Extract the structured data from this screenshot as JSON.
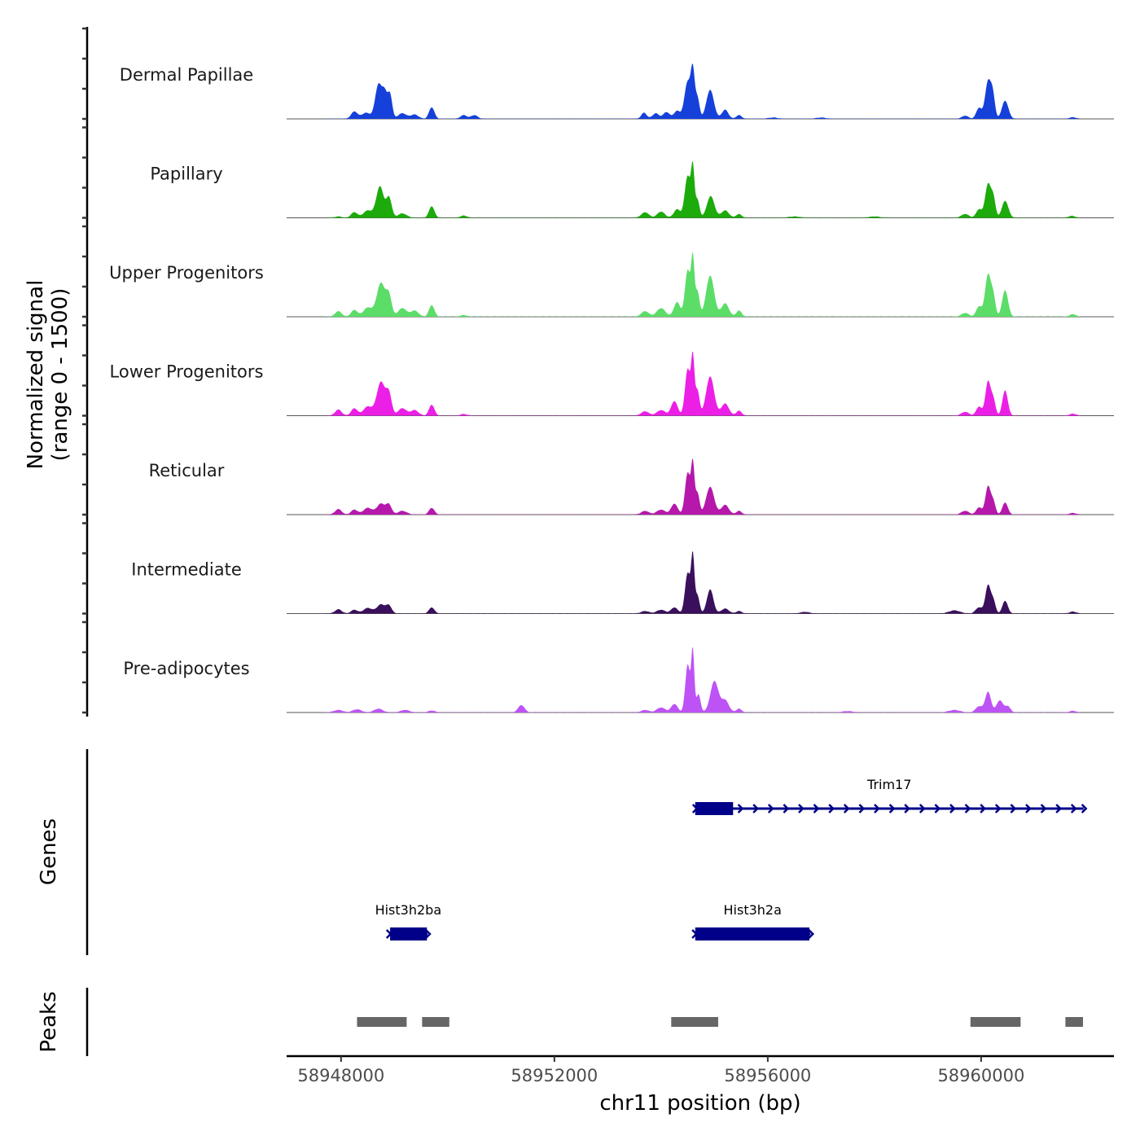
{
  "chart_data": {
    "type": "area",
    "title": "",
    "xlabel": "chr11 position (bp)",
    "ylabel": "Normalized signal\n(range 0 - 1500)",
    "ylabel_lines": [
      "Normalized signal",
      "(range 0 - 1500)"
    ],
    "xlim": [
      58946980,
      58962490
    ],
    "ylim": [
      0,
      1500
    ],
    "y_ticks": [
      0,
      500,
      1000,
      1500
    ],
    "x_ticks": [
      58948000,
      58952000,
      58956000,
      58960000
    ],
    "x_tick_labels": [
      "58948000",
      "58952000",
      "58956000",
      "58960000"
    ],
    "signal_range": [
      58947700,
      58961850
    ],
    "tracks": [
      {
        "name": "Dermal Papillae",
        "color": "#1540DA",
        "peaks": [
          [
            58948250,
            120,
            60
          ],
          [
            58948470,
            100,
            80
          ],
          [
            58948700,
            560,
            60
          ],
          [
            58948820,
            420,
            50
          ],
          [
            58948920,
            380,
            40
          ],
          [
            58949150,
            90,
            80
          ],
          [
            58949380,
            70,
            70
          ],
          [
            58949700,
            190,
            50
          ],
          [
            58950300,
            60,
            60
          ],
          [
            58950500,
            60,
            60
          ],
          [
            58953680,
            100,
            50
          ],
          [
            58953900,
            90,
            60
          ],
          [
            58954100,
            110,
            60
          ],
          [
            58954300,
            130,
            60
          ],
          [
            58954500,
            620,
            60
          ],
          [
            58954595,
            700,
            35
          ],
          [
            58954680,
            350,
            40
          ],
          [
            58954920,
            480,
            70
          ],
          [
            58955200,
            150,
            60
          ],
          [
            58955460,
            60,
            50
          ],
          [
            58956100,
            20,
            80
          ],
          [
            58957000,
            20,
            80
          ],
          [
            58959700,
            50,
            60
          ],
          [
            58959960,
            180,
            50
          ],
          [
            58960130,
            620,
            55
          ],
          [
            58960220,
            350,
            40
          ],
          [
            58960450,
            300,
            60
          ],
          [
            58961720,
            25,
            60
          ]
        ]
      },
      {
        "name": "Papillary",
        "color": "#1CAB0B",
        "peaks": [
          [
            58947950,
            20,
            60
          ],
          [
            58948250,
            90,
            60
          ],
          [
            58948500,
            120,
            80
          ],
          [
            58948730,
            520,
            70
          ],
          [
            58948900,
            330,
            50
          ],
          [
            58949150,
            70,
            80
          ],
          [
            58949700,
            190,
            50
          ],
          [
            58950300,
            35,
            60
          ],
          [
            58953700,
            90,
            70
          ],
          [
            58954000,
            100,
            70
          ],
          [
            58954300,
            140,
            60
          ],
          [
            58954500,
            700,
            55
          ],
          [
            58954595,
            750,
            30
          ],
          [
            58954680,
            300,
            40
          ],
          [
            58954930,
            360,
            70
          ],
          [
            58955200,
            120,
            70
          ],
          [
            58955460,
            60,
            50
          ],
          [
            58956500,
            20,
            100
          ],
          [
            58958000,
            20,
            100
          ],
          [
            58959700,
            60,
            70
          ],
          [
            58959960,
            140,
            50
          ],
          [
            58960130,
            560,
            55
          ],
          [
            58960230,
            300,
            40
          ],
          [
            58960450,
            280,
            60
          ],
          [
            58961700,
            30,
            60
          ]
        ]
      },
      {
        "name": "Upper Progenitors",
        "color": "#5BDD68",
        "peaks": [
          [
            58947950,
            90,
            60
          ],
          [
            58948250,
            110,
            60
          ],
          [
            58948500,
            150,
            80
          ],
          [
            58948750,
            560,
            80
          ],
          [
            58948900,
            320,
            50
          ],
          [
            58949150,
            140,
            80
          ],
          [
            58949380,
            100,
            70
          ],
          [
            58949700,
            190,
            50
          ],
          [
            58950300,
            25,
            60
          ],
          [
            58953700,
            90,
            70
          ],
          [
            58954000,
            140,
            80
          ],
          [
            58954300,
            240,
            60
          ],
          [
            58954500,
            780,
            50
          ],
          [
            58954595,
            900,
            30
          ],
          [
            58954680,
            420,
            40
          ],
          [
            58954920,
            680,
            75
          ],
          [
            58955200,
            220,
            70
          ],
          [
            58955460,
            100,
            50
          ],
          [
            58959700,
            60,
            70
          ],
          [
            58959960,
            170,
            50
          ],
          [
            58960130,
            700,
            55
          ],
          [
            58960230,
            300,
            40
          ],
          [
            58960450,
            440,
            55
          ],
          [
            58961720,
            40,
            60
          ]
        ]
      },
      {
        "name": "Lower Progenitors",
        "color": "#EC1FE6",
        "peaks": [
          [
            58947950,
            100,
            60
          ],
          [
            58948250,
            120,
            60
          ],
          [
            58948500,
            150,
            80
          ],
          [
            58948750,
            560,
            80
          ],
          [
            58948900,
            330,
            50
          ],
          [
            58949150,
            120,
            80
          ],
          [
            58949380,
            90,
            70
          ],
          [
            58949700,
            180,
            50
          ],
          [
            58950300,
            25,
            60
          ],
          [
            58953700,
            70,
            70
          ],
          [
            58954000,
            90,
            80
          ],
          [
            58954250,
            240,
            60
          ],
          [
            58954500,
            780,
            50
          ],
          [
            58954595,
            900,
            30
          ],
          [
            58954680,
            420,
            40
          ],
          [
            58954920,
            650,
            75
          ],
          [
            58955200,
            200,
            70
          ],
          [
            58955460,
            80,
            50
          ],
          [
            58959700,
            60,
            70
          ],
          [
            58959960,
            150,
            50
          ],
          [
            58960130,
            570,
            50
          ],
          [
            58960230,
            250,
            40
          ],
          [
            58960450,
            420,
            50
          ],
          [
            58961720,
            30,
            60
          ]
        ]
      },
      {
        "name": "Reticular",
        "color": "#B518AB",
        "peaks": [
          [
            58947950,
            90,
            60
          ],
          [
            58948250,
            80,
            60
          ],
          [
            58948500,
            110,
            80
          ],
          [
            58948750,
            180,
            80
          ],
          [
            58948900,
            150,
            50
          ],
          [
            58949150,
            60,
            80
          ],
          [
            58949700,
            110,
            50
          ],
          [
            58953700,
            60,
            70
          ],
          [
            58954000,
            80,
            80
          ],
          [
            58954250,
            180,
            60
          ],
          [
            58954500,
            700,
            50
          ],
          [
            58954595,
            780,
            30
          ],
          [
            58954680,
            360,
            40
          ],
          [
            58954920,
            460,
            75
          ],
          [
            58955200,
            160,
            70
          ],
          [
            58955460,
            60,
            50
          ],
          [
            58959700,
            60,
            70
          ],
          [
            58959960,
            120,
            50
          ],
          [
            58960130,
            470,
            50
          ],
          [
            58960230,
            200,
            40
          ],
          [
            58960450,
            200,
            50
          ],
          [
            58961720,
            25,
            60
          ]
        ]
      },
      {
        "name": "Intermediate",
        "color": "#3A0F5C",
        "peaks": [
          [
            58947950,
            70,
            60
          ],
          [
            58948250,
            60,
            60
          ],
          [
            58948500,
            90,
            80
          ],
          [
            58948750,
            150,
            80
          ],
          [
            58948900,
            120,
            50
          ],
          [
            58949700,
            100,
            50
          ],
          [
            58953700,
            40,
            70
          ],
          [
            58954000,
            60,
            80
          ],
          [
            58954250,
            100,
            60
          ],
          [
            58954500,
            680,
            50
          ],
          [
            58954595,
            900,
            30
          ],
          [
            58954680,
            300,
            40
          ],
          [
            58954920,
            400,
            60
          ],
          [
            58955200,
            80,
            70
          ],
          [
            58955460,
            40,
            50
          ],
          [
            58956700,
            25,
            80
          ],
          [
            58959500,
            50,
            100
          ],
          [
            58959960,
            100,
            60
          ],
          [
            58960130,
            470,
            50
          ],
          [
            58960230,
            200,
            40
          ],
          [
            58960450,
            210,
            50
          ],
          [
            58961720,
            30,
            60
          ]
        ]
      },
      {
        "name": "Pre-adipocytes",
        "color": "#BE53F5",
        "peaks": [
          [
            58947950,
            40,
            80
          ],
          [
            58948300,
            50,
            80
          ],
          [
            58948700,
            60,
            80
          ],
          [
            58949200,
            40,
            80
          ],
          [
            58949700,
            30,
            60
          ],
          [
            58951380,
            120,
            60
          ],
          [
            58953700,
            40,
            70
          ],
          [
            58954000,
            80,
            80
          ],
          [
            58954250,
            140,
            60
          ],
          [
            58954500,
            800,
            45
          ],
          [
            58954595,
            1000,
            28
          ],
          [
            58954700,
            300,
            40
          ],
          [
            58955000,
            520,
            75
          ],
          [
            58955200,
            200,
            70
          ],
          [
            58955460,
            60,
            50
          ],
          [
            58957500,
            20,
            100
          ],
          [
            58959500,
            40,
            100
          ],
          [
            58959960,
            100,
            60
          ],
          [
            58960130,
            340,
            55
          ],
          [
            58960350,
            200,
            60
          ],
          [
            58960500,
            100,
            50
          ],
          [
            58961720,
            25,
            60
          ]
        ]
      }
    ],
    "genes_track_label": "Genes",
    "genes": [
      {
        "name": "Trim17",
        "start": 58954640,
        "end": 58961920,
        "strand": "+",
        "exon_start": 58954640,
        "exon_end": 58955350,
        "row": 1
      },
      {
        "name": "Hist3h2ba",
        "start": 58948900,
        "end": 58949620,
        "strand": "+",
        "exon_start": 58948920,
        "exon_end": 58949610,
        "row": 2
      },
      {
        "name": "Hist3h2a",
        "start": 58954630,
        "end": 58956800,
        "strand": "+",
        "exon_start": 58954640,
        "exon_end": 58956780,
        "row": 2
      }
    ],
    "gene_color": "#000088",
    "peaks_track_label": "Peaks",
    "peak_color": "#666666",
    "peak_regions": [
      [
        58948300,
        58949230
      ],
      [
        58949520,
        58950030
      ],
      [
        58954190,
        58955070
      ],
      [
        58959800,
        58960740
      ],
      [
        58961580,
        58961910
      ]
    ]
  }
}
